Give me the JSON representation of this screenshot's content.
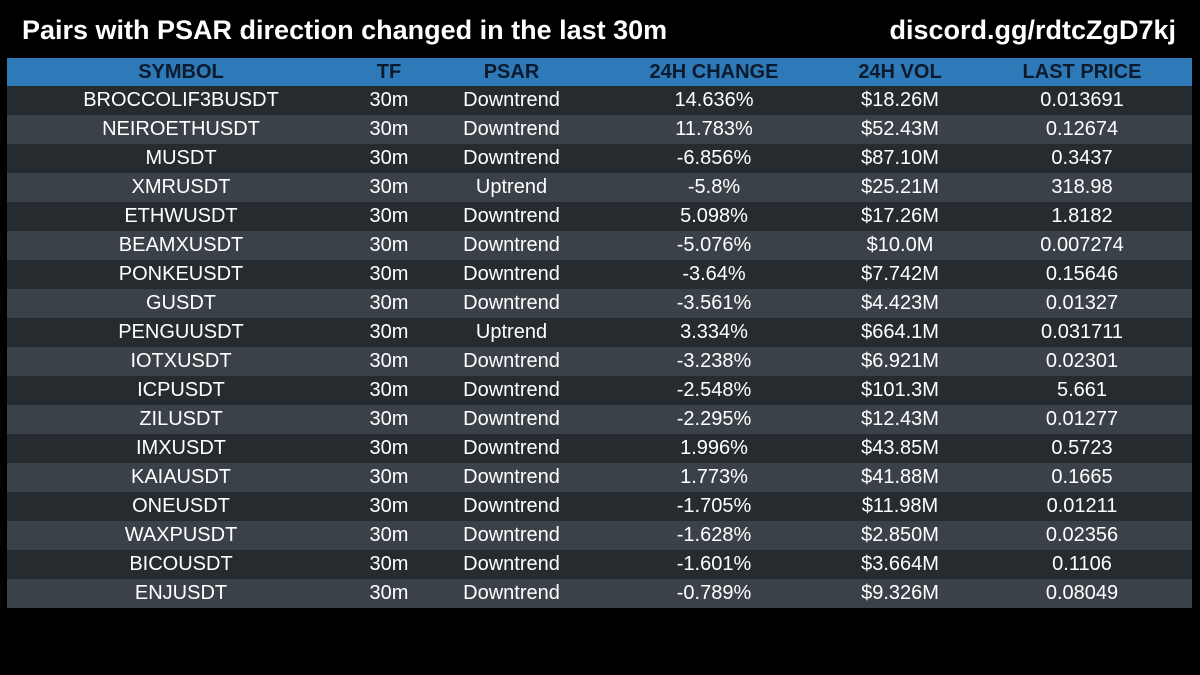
{
  "header": {
    "title": "Pairs with PSAR direction changed in the last 30m",
    "link": "discord.gg/rdtcZgD7kj"
  },
  "table": {
    "columns": [
      "SYMBOL",
      "TF",
      "PSAR",
      "24H CHANGE",
      "24H VOL",
      "LAST PRICE"
    ],
    "rows": [
      [
        "BROCCOLIF3BUSDT",
        "30m",
        "Downtrend",
        "14.636%",
        "$18.26M",
        "0.013691"
      ],
      [
        "NEIROETHUSDT",
        "30m",
        "Downtrend",
        "11.783%",
        "$52.43M",
        "0.12674"
      ],
      [
        "MUSDT",
        "30m",
        "Downtrend",
        "-6.856%",
        "$87.10M",
        "0.3437"
      ],
      [
        "XMRUSDT",
        "30m",
        "Uptrend",
        "-5.8%",
        "$25.21M",
        "318.98"
      ],
      [
        "ETHWUSDT",
        "30m",
        "Downtrend",
        "5.098%",
        "$17.26M",
        "1.8182"
      ],
      [
        "BEAMXUSDT",
        "30m",
        "Downtrend",
        "-5.076%",
        "$10.0M",
        "0.007274"
      ],
      [
        "PONKEUSDT",
        "30m",
        "Downtrend",
        "-3.64%",
        "$7.742M",
        "0.15646"
      ],
      [
        "GUSDT",
        "30m",
        "Downtrend",
        "-3.561%",
        "$4.423M",
        "0.01327"
      ],
      [
        "PENGUUSDT",
        "30m",
        "Uptrend",
        "3.334%",
        "$664.1M",
        "0.031711"
      ],
      [
        "IOTXUSDT",
        "30m",
        "Downtrend",
        "-3.238%",
        "$6.921M",
        "0.02301"
      ],
      [
        "ICPUSDT",
        "30m",
        "Downtrend",
        "-2.548%",
        "$101.3M",
        "5.661"
      ],
      [
        "ZILUSDT",
        "30m",
        "Downtrend",
        "-2.295%",
        "$12.43M",
        "0.01277"
      ],
      [
        "IMXUSDT",
        "30m",
        "Downtrend",
        "1.996%",
        "$43.85M",
        "0.5723"
      ],
      [
        "KAIAUSDT",
        "30m",
        "Downtrend",
        "1.773%",
        "$41.88M",
        "0.1665"
      ],
      [
        "ONEUSDT",
        "30m",
        "Downtrend",
        "-1.705%",
        "$11.98M",
        "0.01211"
      ],
      [
        "WAXPUSDT",
        "30m",
        "Downtrend",
        "-1.628%",
        "$2.850M",
        "0.02356"
      ],
      [
        "BICOUSDT",
        "30m",
        "Downtrend",
        "-1.601%",
        "$3.664M",
        "0.1106"
      ],
      [
        "ENJUSDT",
        "30m",
        "Downtrend",
        "-0.789%",
        "$9.326M",
        "0.08049"
      ]
    ]
  },
  "colors": {
    "background": "#000000",
    "header_row": "#2e7ab8",
    "header_text": "#0c1a2e",
    "row_dark": "#262b30",
    "row_light": "#3b4148",
    "text": "#ffffff"
  }
}
